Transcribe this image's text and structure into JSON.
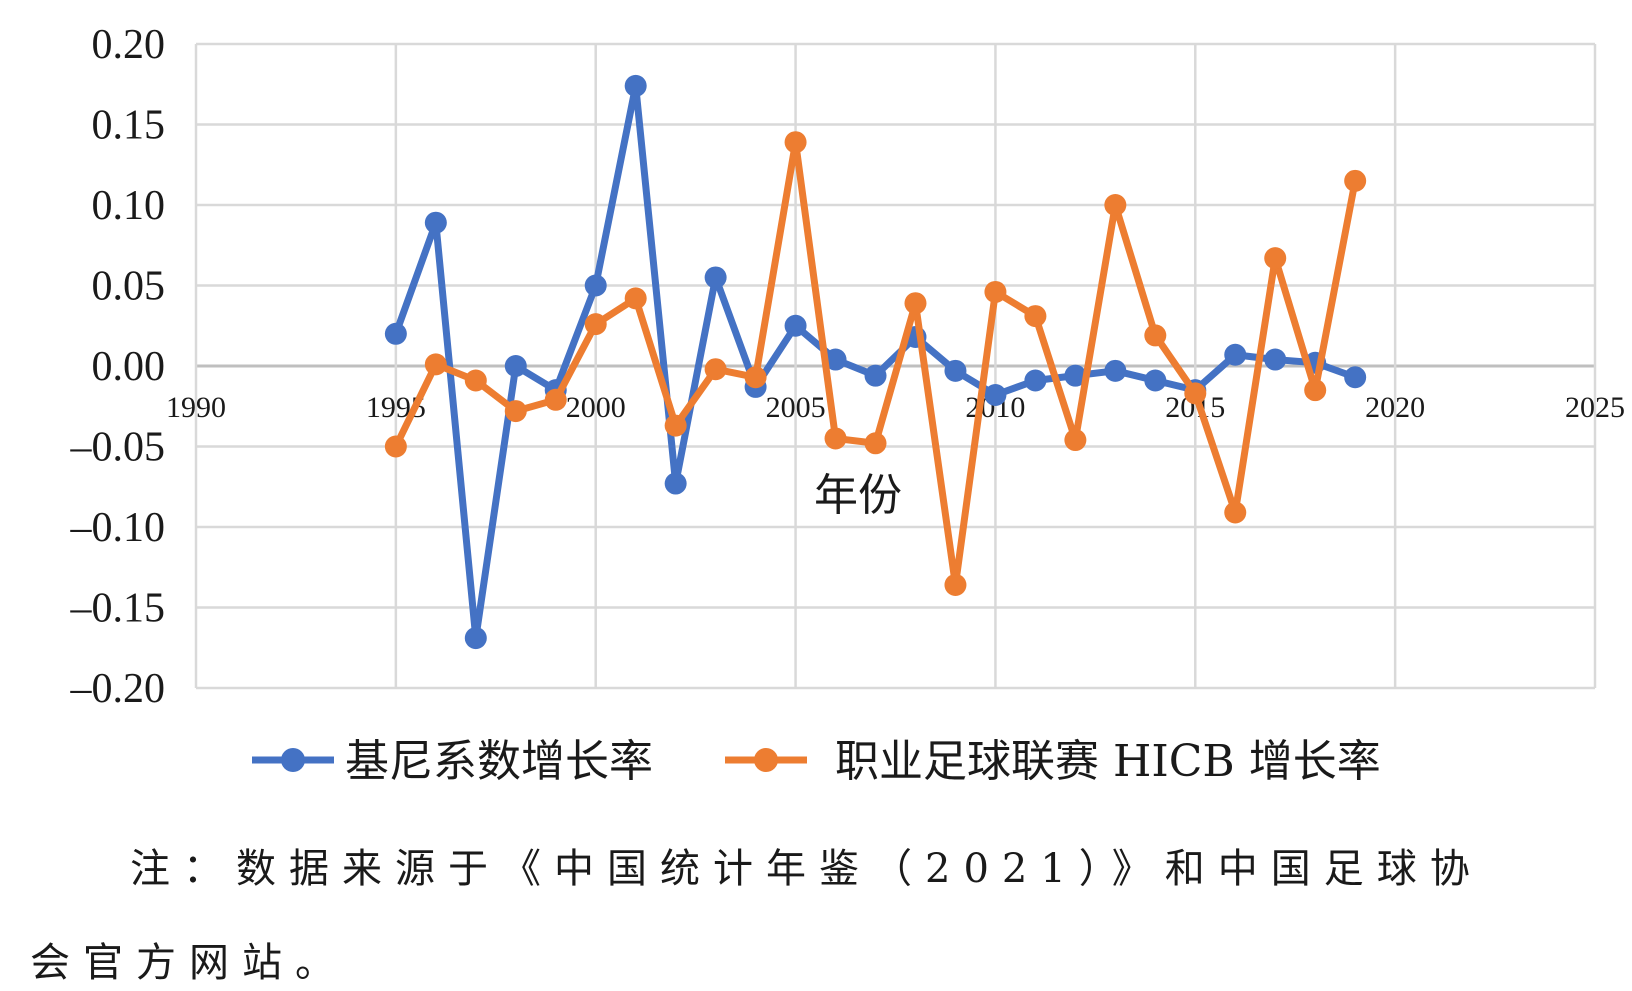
{
  "chart_data": {
    "type": "line",
    "xlabel": "年份",
    "ylabel": "",
    "title": "",
    "xlim": [
      1990,
      2025
    ],
    "ylim": [
      -0.2,
      0.2
    ],
    "xticks": [
      1990,
      1995,
      2000,
      2005,
      2010,
      2015,
      2020,
      2025
    ],
    "yticks": [
      "0.20",
      "0.15",
      "0.10",
      "0.05",
      "0.00",
      "–0.05",
      "–0.10",
      "–0.15",
      "–0.20"
    ],
    "ytick_values": [
      0.2,
      0.15,
      0.1,
      0.05,
      0.0,
      -0.05,
      -0.1,
      -0.15,
      -0.2
    ],
    "grid": true,
    "legend_position": "bottom",
    "series": [
      {
        "name": "基尼系数增长率",
        "color": "#4472C4",
        "x": [
          1995,
          1996,
          1997,
          1998,
          1999,
          2000,
          2001,
          2002,
          2003,
          2004,
          2005,
          2006,
          2007,
          2008,
          2009,
          2010,
          2011,
          2012,
          2013,
          2014,
          2015,
          2016,
          2017,
          2018,
          2019
        ],
        "y": [
          0.02,
          0.089,
          -0.169,
          0.0,
          -0.015,
          0.05,
          0.174,
          -0.073,
          0.055,
          -0.013,
          0.025,
          0.004,
          -0.006,
          0.018,
          -0.003,
          -0.018,
          -0.009,
          -0.006,
          -0.003,
          -0.009,
          -0.015,
          0.007,
          0.004,
          0.002,
          -0.007
        ]
      },
      {
        "name": "职业足球联赛 HICB 增长率",
        "color": "#ED7D31",
        "x": [
          1995,
          1996,
          1997,
          1998,
          1999,
          2000,
          2001,
          2002,
          2003,
          2004,
          2005,
          2006,
          2007,
          2008,
          2009,
          2010,
          2011,
          2012,
          2013,
          2014,
          2015,
          2016,
          2017,
          2018,
          2019
        ],
        "y": [
          -0.05,
          0.001,
          -0.009,
          -0.028,
          -0.021,
          0.026,
          0.042,
          -0.037,
          -0.002,
          -0.007,
          0.139,
          -0.045,
          -0.048,
          0.039,
          -0.136,
          0.046,
          0.031,
          -0.046,
          0.1,
          0.019,
          -0.017,
          -0.091,
          0.067,
          -0.015,
          0.115
        ]
      }
    ]
  },
  "note": {
    "line1": "注：数据来源于《中国统计年鉴（2021）》和中国足球协",
    "line2": "会官方网站。"
  }
}
